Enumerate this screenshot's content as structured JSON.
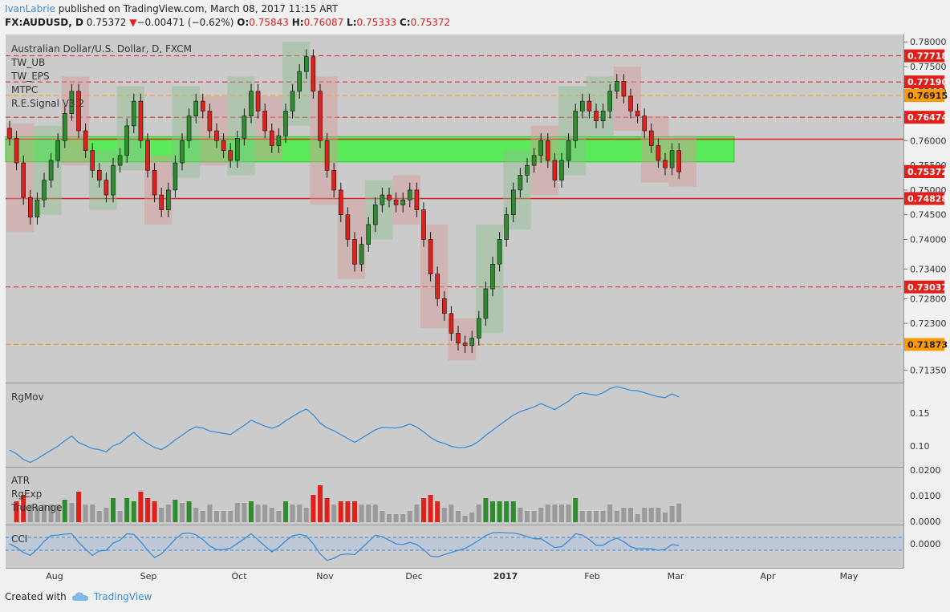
{
  "header": {
    "author": "IvanLabrie",
    "published_text": "published on TradingView.com, March 08, 2017 11:15 ART",
    "symbol": "FX:AUDUSD, D",
    "last": "0.75372",
    "change": "−0.00471 (−0.62%)",
    "open_label": "O:",
    "open": "0.75843",
    "high_label": "H:",
    "high": "0.76087",
    "low_label": "L:",
    "low": "0.75333",
    "close_label": "C:",
    "close": "0.75372"
  },
  "legend": {
    "title": "Australian Dollar/U.S. Dollar, D, FXCM",
    "items": [
      "TW_UB",
      "TW_EPS",
      "MTPC",
      "R.E.Signal V3.2"
    ]
  },
  "colors": {
    "bull": "#2e8b2e",
    "bear": "#e0201b",
    "accent": "#3b8bd8",
    "zone": "#3cf03c",
    "orange": "#ff9900"
  },
  "chart_data": {
    "type": "candlestick",
    "title": "Australian Dollar/U.S. Dollar, D, FXCM",
    "ylim": [
      0.711,
      0.7815
    ],
    "y_ticks": [
      "0.78000",
      "0.77500",
      "0.77000",
      "0.76500",
      "0.76000",
      "0.75500",
      "0.75000",
      "0.74500",
      "0.74000",
      "0.73400",
      "0.72800",
      "0.72300",
      "0.71350"
    ],
    "x_ticks": [
      "Aug",
      "Sep",
      "Oct",
      "Nov",
      "Dec",
      "2017",
      "Feb",
      "Mar",
      "Apr",
      "May"
    ],
    "price_labels": [
      {
        "value": "0.77718",
        "color": "#e0201b"
      },
      {
        "value": "0.77190",
        "color": "#e0201b"
      },
      {
        "value": "0.76915",
        "color": "#ff9900"
      },
      {
        "value": "0.76474",
        "color": "#e0201b"
      },
      {
        "value": "0.75372",
        "color": "#e0201b"
      },
      {
        "value": "0.74828",
        "color": "#e0201b"
      },
      {
        "value": "0.73037",
        "color": "#e0201b"
      },
      {
        "value": "0.71873",
        "color": "#ff9900"
      }
    ],
    "horizontal_levels": [
      {
        "value": 0.77718,
        "style": "dashed",
        "color": "#e0201b"
      },
      {
        "value": 0.7719,
        "style": "dashed",
        "color": "#e0201b"
      },
      {
        "value": 0.76915,
        "style": "dashed",
        "color": "#ff9900"
      },
      {
        "value": 0.76474,
        "style": "dashed",
        "color": "#e0201b"
      },
      {
        "value": 0.7603,
        "style": "solid",
        "color": "#e0201b"
      },
      {
        "value": 0.74828,
        "style": "solid",
        "color": "#e0201b"
      },
      {
        "value": 0.73037,
        "style": "dashed",
        "color": "#e0201b"
      },
      {
        "value": 0.71873,
        "style": "dashed",
        "color": "#ff9900"
      }
    ],
    "zone": {
      "low": 0.7557,
      "high": 0.7608
    },
    "close_series": [
      0.7605,
      0.7555,
      0.7485,
      0.7445,
      0.748,
      0.752,
      0.756,
      0.76,
      0.7655,
      0.77,
      0.762,
      0.758,
      0.754,
      0.752,
      0.749,
      0.755,
      0.757,
      0.763,
      0.768,
      0.76,
      0.754,
      0.749,
      0.746,
      0.75,
      0.7555,
      0.76,
      0.765,
      0.768,
      0.766,
      0.762,
      0.76,
      0.758,
      0.756,
      0.7605,
      0.765,
      0.77,
      0.766,
      0.762,
      0.759,
      0.761,
      0.766,
      0.77,
      0.774,
      0.777,
      0.77,
      0.76,
      0.754,
      0.75,
      0.745,
      0.74,
      0.735,
      0.739,
      0.743,
      0.747,
      0.749,
      0.748,
      0.747,
      0.748,
      0.75,
      0.746,
      0.74,
      0.733,
      0.728,
      0.725,
      0.721,
      0.719,
      0.7185,
      0.72,
      0.724,
      0.73,
      0.735,
      0.74,
      0.745,
      0.75,
      0.753,
      0.755,
      0.757,
      0.76,
      0.756,
      0.752,
      0.756,
      0.76,
      0.766,
      0.768,
      0.766,
      0.764,
      0.766,
      0.77,
      0.772,
      0.769,
      0.766,
      0.765,
      0.762,
      0.759,
      0.756,
      0.7545,
      0.758,
      0.7537
    ],
    "subpanels": [
      {
        "name": "RgMov",
        "ticks": [
          "0.15",
          "0.10"
        ]
      },
      {
        "name": "ATR",
        "extra_labels": [
          "RgExp",
          "TrueRange"
        ],
        "ticks": [
          "0.0200",
          "0.0100",
          "0.0000"
        ]
      },
      {
        "name": "CCI",
        "ticks": [
          "0.0000"
        ]
      }
    ]
  },
  "footer": {
    "created_with": "Created with",
    "brand": "TradingView"
  }
}
